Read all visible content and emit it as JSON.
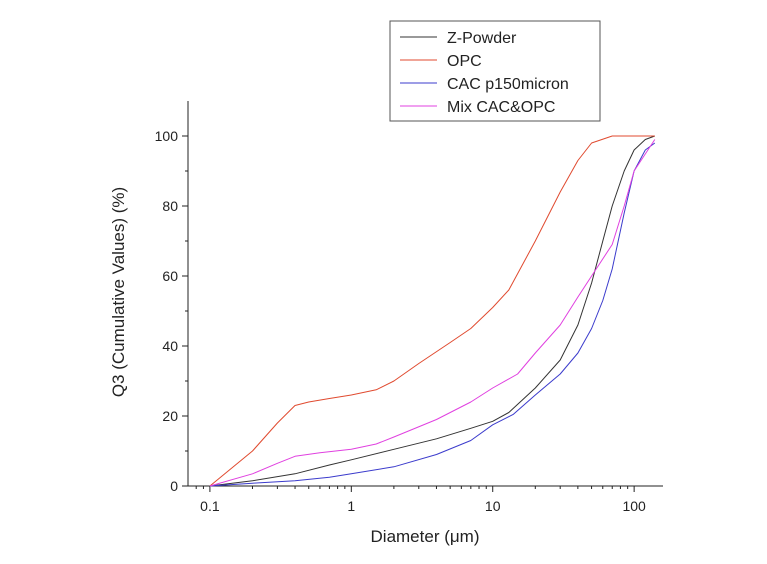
{
  "chart_data": {
    "type": "line",
    "xlabel": "Diameter (μm)",
    "ylabel": "Q3 (Cumulative Values) (%)",
    "xscale": "log",
    "xlim": [
      0.07,
      160
    ],
    "ylim": [
      0,
      110
    ],
    "x_ticks": [
      0.1,
      1,
      10,
      100
    ],
    "x_tick_labels": [
      "0.1",
      "1",
      "10",
      "100"
    ],
    "y_ticks": [
      0,
      20,
      40,
      60,
      80,
      100
    ],
    "y_tick_labels": [
      "0",
      "20",
      "40",
      "60",
      "80",
      "100"
    ],
    "grid": false,
    "legend_position": "top-right",
    "series": [
      {
        "name": "Z-Powder",
        "color": "#333333",
        "points": [
          [
            0.1,
            0
          ],
          [
            0.2,
            1.5
          ],
          [
            0.4,
            3.5
          ],
          [
            0.7,
            6
          ],
          [
            1,
            7.5
          ],
          [
            2,
            10.5
          ],
          [
            4,
            13.5
          ],
          [
            7,
            16.5
          ],
          [
            10,
            18.5
          ],
          [
            13,
            21
          ],
          [
            20,
            28
          ],
          [
            30,
            36
          ],
          [
            40,
            46
          ],
          [
            50,
            58
          ],
          [
            60,
            70
          ],
          [
            70,
            80
          ],
          [
            85,
            90
          ],
          [
            100,
            96
          ],
          [
            120,
            99
          ],
          [
            140,
            100
          ]
        ]
      },
      {
        "name": "OPC",
        "color": "#e04a2f",
        "points": [
          [
            0.1,
            0
          ],
          [
            0.2,
            10
          ],
          [
            0.3,
            18
          ],
          [
            0.4,
            23
          ],
          [
            0.5,
            24
          ],
          [
            0.7,
            25
          ],
          [
            1,
            26
          ],
          [
            1.5,
            27.5
          ],
          [
            2,
            30
          ],
          [
            3,
            35
          ],
          [
            5,
            41
          ],
          [
            7,
            45
          ],
          [
            10,
            51
          ],
          [
            13,
            56
          ],
          [
            20,
            70
          ],
          [
            30,
            84
          ],
          [
            40,
            93
          ],
          [
            50,
            98
          ],
          [
            70,
            100
          ],
          [
            140,
            100
          ]
        ]
      },
      {
        "name": "CAC p150micron",
        "color": "#3b3bcc",
        "points": [
          [
            0.1,
            0
          ],
          [
            0.2,
            0.8
          ],
          [
            0.4,
            1.5
          ],
          [
            0.7,
            2.5
          ],
          [
            1,
            3.5
          ],
          [
            2,
            5.5
          ],
          [
            4,
            9
          ],
          [
            7,
            13
          ],
          [
            10,
            17.5
          ],
          [
            14,
            20.5
          ],
          [
            20,
            26
          ],
          [
            30,
            32
          ],
          [
            40,
            38
          ],
          [
            50,
            45
          ],
          [
            60,
            53
          ],
          [
            70,
            62
          ],
          [
            85,
            78
          ],
          [
            100,
            90
          ],
          [
            120,
            96
          ],
          [
            140,
            98
          ]
        ]
      },
      {
        "name": "Mix CAC&OPC",
        "color": "#e040e0",
        "points": [
          [
            0.1,
            0
          ],
          [
            0.2,
            3.5
          ],
          [
            0.3,
            6.5
          ],
          [
            0.4,
            8.5
          ],
          [
            0.6,
            9.5
          ],
          [
            1,
            10.5
          ],
          [
            1.5,
            12
          ],
          [
            2,
            14
          ],
          [
            4,
            19
          ],
          [
            7,
            24
          ],
          [
            10,
            28
          ],
          [
            15,
            32
          ],
          [
            20,
            38
          ],
          [
            30,
            46
          ],
          [
            40,
            54
          ],
          [
            50,
            60
          ],
          [
            70,
            69
          ],
          [
            85,
            80
          ],
          [
            100,
            90
          ],
          [
            140,
            99
          ]
        ]
      }
    ]
  }
}
